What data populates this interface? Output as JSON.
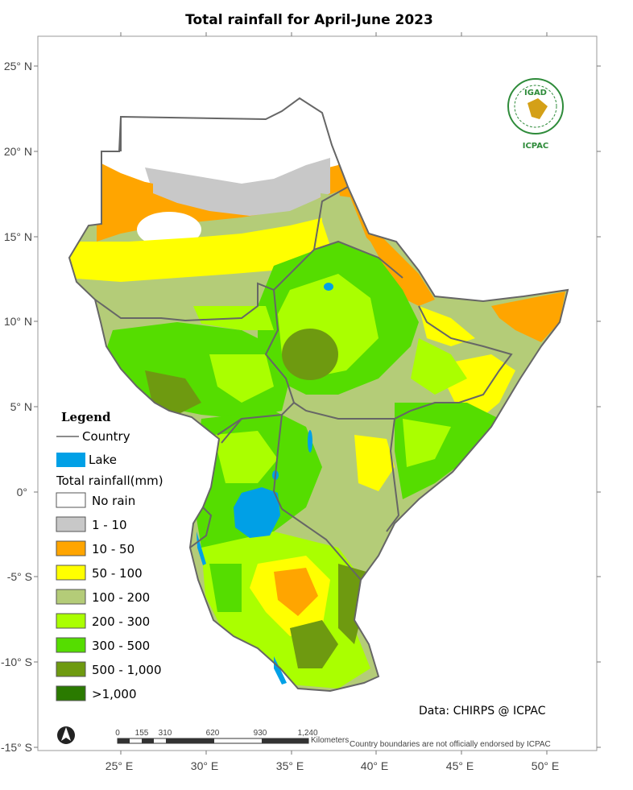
{
  "map": {
    "title": "Total rainfall  for  April-June  2023",
    "lat_labels": [
      "25° N",
      "20° N",
      "15° N",
      "10° N",
      "5° N",
      "0°",
      "-5° S",
      "-10° S",
      "-15° S"
    ],
    "lon_labels": [
      "25° E",
      "30° E",
      "35° E",
      "40° E",
      "45° E",
      "50° E"
    ]
  },
  "legend": {
    "heading": "Legend",
    "country_label": "Country",
    "lake_label": "Lake",
    "rainfall_heading": "Total rainfall(mm)",
    "classes": [
      {
        "label": "No rain",
        "color": "#ffffff"
      },
      {
        "label": "1 - 10",
        "color": "#c8c8c8"
      },
      {
        "label": "10 - 50",
        "color": "#ffa500"
      },
      {
        "label": "50 - 100",
        "color": "#ffff00"
      },
      {
        "label": "100 - 200",
        "color": "#b4cc78"
      },
      {
        "label": "200 - 300",
        "color": "#aaff00"
      },
      {
        "label": "300 - 500",
        "color": "#55dd00"
      },
      {
        "label": "500 - 1,000",
        "color": "#6e9a10"
      },
      {
        "label": ">1,000",
        "color": "#2a7a00"
      }
    ],
    "lake_color": "#00a0e6",
    "country_line_color": "#666666"
  },
  "scalebar": {
    "ticks": [
      "0",
      "155",
      "310",
      "620",
      "930",
      "1,240"
    ],
    "unit": "Kilometers"
  },
  "disclaimer": "Country boundaries are not officially endorsed by ICPAC",
  "credit": "Data: CHIRPS @ ICPAC",
  "logo": {
    "top": "IGAD",
    "bottom": "ICPAC"
  },
  "north_arrow": "north-arrow-icon"
}
